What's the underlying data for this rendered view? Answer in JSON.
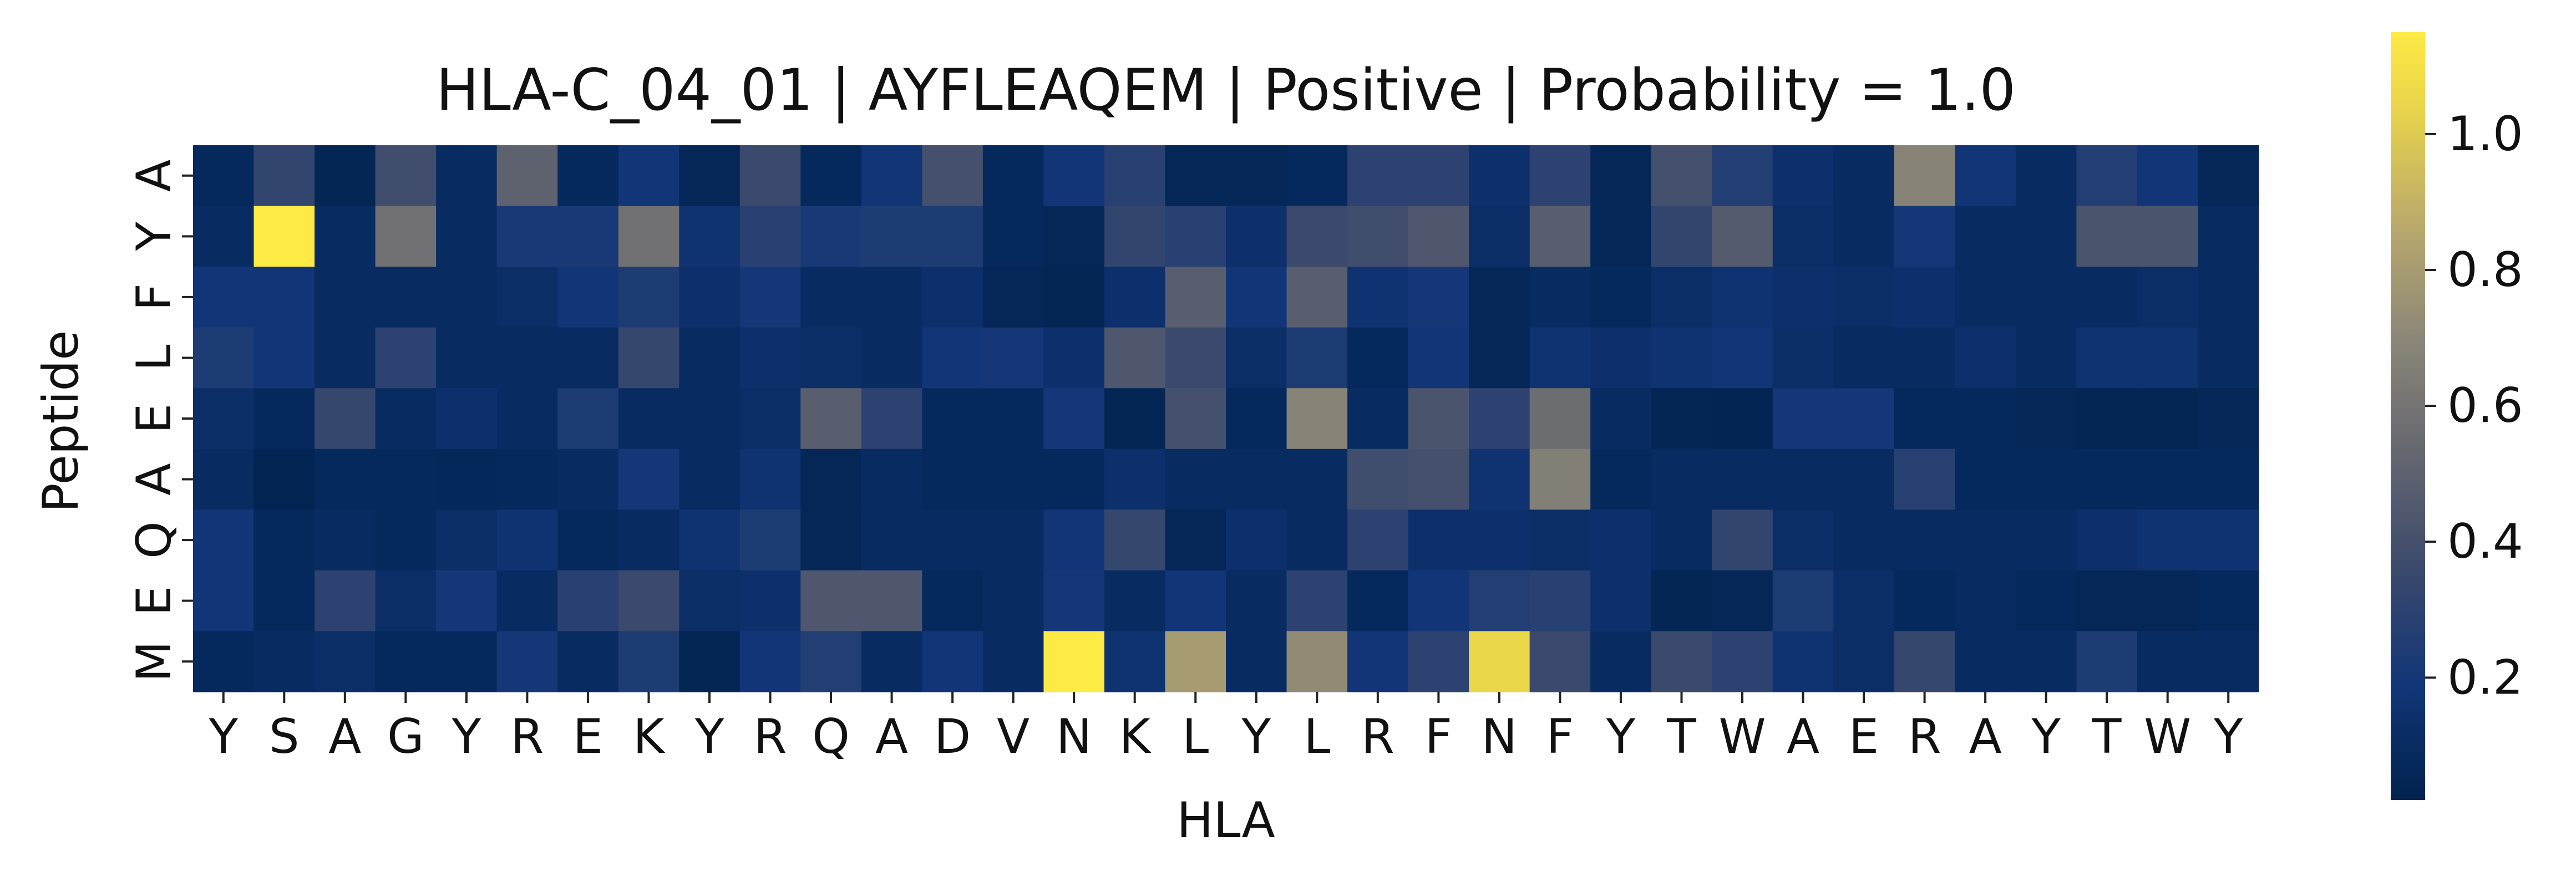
{
  "chart_data": {
    "type": "heatmap",
    "title": "HLA-C_04_01 | AYFLEAQEM | Positive | Probability = 1.0",
    "xlabel": "HLA",
    "ylabel": "Peptide",
    "x_categories": [
      "Y",
      "S",
      "A",
      "G",
      "Y",
      "R",
      "E",
      "K",
      "Y",
      "R",
      "Q",
      "A",
      "D",
      "V",
      "N",
      "K",
      "L",
      "Y",
      "L",
      "R",
      "F",
      "N",
      "F",
      "Y",
      "T",
      "W",
      "A",
      "E",
      "R",
      "A",
      "Y",
      "T",
      "W",
      "Y"
    ],
    "y_categories": [
      "A",
      "Y",
      "F",
      "L",
      "E",
      "A",
      "Q",
      "E",
      "M"
    ],
    "colormap": "cividis",
    "colorbar": {
      "vmin": 0.02,
      "vmax": 1.15,
      "ticks": [
        0.2,
        0.4,
        0.6,
        0.8,
        1.0
      ],
      "tick_labels": [
        "0.2",
        "0.4",
        "0.6",
        "0.8",
        "1.0"
      ]
    },
    "values": [
      [
        0.08,
        0.32,
        0.05,
        0.38,
        0.1,
        0.5,
        0.08,
        0.18,
        0.06,
        0.36,
        0.08,
        0.18,
        0.4,
        0.08,
        0.18,
        0.28,
        0.06,
        0.06,
        0.08,
        0.3,
        0.3,
        0.14,
        0.3,
        0.06,
        0.4,
        0.26,
        0.14,
        0.1,
        0.68,
        0.18,
        0.1,
        0.26,
        0.18,
        0.06
      ],
      [
        0.1,
        1.15,
        0.1,
        0.58,
        0.1,
        0.22,
        0.22,
        0.58,
        0.16,
        0.28,
        0.22,
        0.24,
        0.24,
        0.08,
        0.06,
        0.32,
        0.28,
        0.14,
        0.36,
        0.38,
        0.44,
        0.12,
        0.48,
        0.06,
        0.32,
        0.46,
        0.12,
        0.1,
        0.2,
        0.1,
        0.1,
        0.42,
        0.42,
        0.1
      ],
      [
        0.18,
        0.18,
        0.1,
        0.1,
        0.1,
        0.12,
        0.18,
        0.24,
        0.14,
        0.2,
        0.1,
        0.1,
        0.14,
        0.06,
        0.05,
        0.14,
        0.48,
        0.18,
        0.48,
        0.16,
        0.2,
        0.06,
        0.1,
        0.08,
        0.12,
        0.16,
        0.14,
        0.12,
        0.14,
        0.1,
        0.1,
        0.1,
        0.12,
        0.1
      ],
      [
        0.24,
        0.18,
        0.1,
        0.3,
        0.1,
        0.1,
        0.1,
        0.34,
        0.1,
        0.14,
        0.12,
        0.1,
        0.18,
        0.2,
        0.14,
        0.44,
        0.36,
        0.12,
        0.24,
        0.08,
        0.18,
        0.06,
        0.16,
        0.14,
        0.16,
        0.18,
        0.12,
        0.1,
        0.1,
        0.14,
        0.1,
        0.16,
        0.16,
        0.1
      ],
      [
        0.12,
        0.08,
        0.34,
        0.1,
        0.14,
        0.1,
        0.24,
        0.1,
        0.1,
        0.12,
        0.48,
        0.3,
        0.08,
        0.08,
        0.2,
        0.05,
        0.4,
        0.08,
        0.68,
        0.1,
        0.42,
        0.3,
        0.56,
        0.1,
        0.05,
        0.04,
        0.2,
        0.2,
        0.08,
        0.08,
        0.06,
        0.05,
        0.05,
        0.06
      ],
      [
        0.1,
        0.04,
        0.08,
        0.08,
        0.07,
        0.08,
        0.1,
        0.2,
        0.1,
        0.16,
        0.06,
        0.1,
        0.08,
        0.08,
        0.08,
        0.14,
        0.1,
        0.1,
        0.1,
        0.38,
        0.4,
        0.16,
        0.66,
        0.08,
        0.1,
        0.1,
        0.1,
        0.1,
        0.28,
        0.08,
        0.08,
        0.08,
        0.08,
        0.08
      ],
      [
        0.18,
        0.08,
        0.1,
        0.08,
        0.12,
        0.16,
        0.08,
        0.1,
        0.16,
        0.24,
        0.06,
        0.1,
        0.1,
        0.1,
        0.18,
        0.34,
        0.06,
        0.14,
        0.1,
        0.3,
        0.14,
        0.14,
        0.12,
        0.14,
        0.1,
        0.32,
        0.12,
        0.1,
        0.1,
        0.1,
        0.1,
        0.14,
        0.16,
        0.16
      ],
      [
        0.18,
        0.08,
        0.3,
        0.12,
        0.2,
        0.1,
        0.28,
        0.36,
        0.12,
        0.14,
        0.44,
        0.44,
        0.08,
        0.1,
        0.2,
        0.1,
        0.18,
        0.1,
        0.3,
        0.08,
        0.18,
        0.26,
        0.28,
        0.14,
        0.05,
        0.06,
        0.24,
        0.12,
        0.08,
        0.1,
        0.08,
        0.06,
        0.06,
        0.08
      ],
      [
        0.08,
        0.1,
        0.12,
        0.08,
        0.08,
        0.2,
        0.1,
        0.24,
        0.05,
        0.18,
        0.26,
        0.1,
        0.18,
        0.1,
        1.15,
        0.16,
        0.8,
        0.1,
        0.72,
        0.18,
        0.3,
        1.05,
        0.36,
        0.1,
        0.36,
        0.3,
        0.16,
        0.12,
        0.34,
        0.1,
        0.1,
        0.24,
        0.1,
        0.1
      ]
    ]
  }
}
